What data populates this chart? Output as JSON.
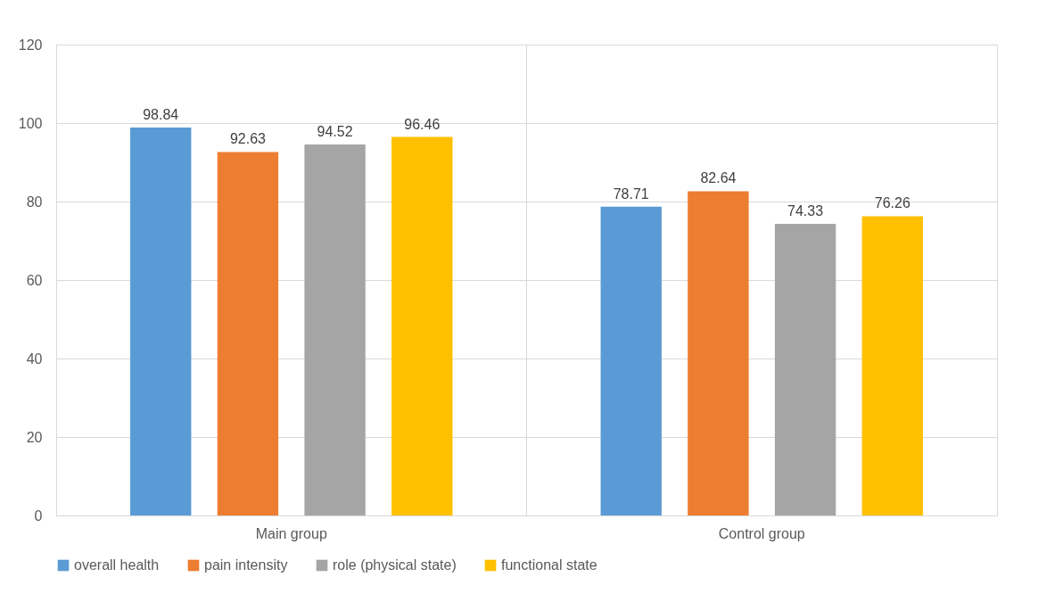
{
  "chart_data": {
    "type": "bar",
    "categories": [
      "Main group",
      "Control group"
    ],
    "series": [
      {
        "name": "overall health",
        "color": "#5b9bd5",
        "values": [
          98.84,
          78.71
        ]
      },
      {
        "name": "pain intensity",
        "color": "#ed7d31",
        "values": [
          92.63,
          82.64
        ]
      },
      {
        "name": "role (physical state)",
        "color": "#a5a5a5",
        "values": [
          94.52,
          74.33
        ]
      },
      {
        "name": "functional state",
        "color": "#ffc000",
        "values": [
          96.46,
          76.26
        ]
      }
    ],
    "ylim": [
      0,
      120
    ],
    "yticks": [
      0,
      20,
      40,
      60,
      80,
      100,
      120
    ],
    "grid": true,
    "legend": "bottom",
    "data_labels": true
  }
}
